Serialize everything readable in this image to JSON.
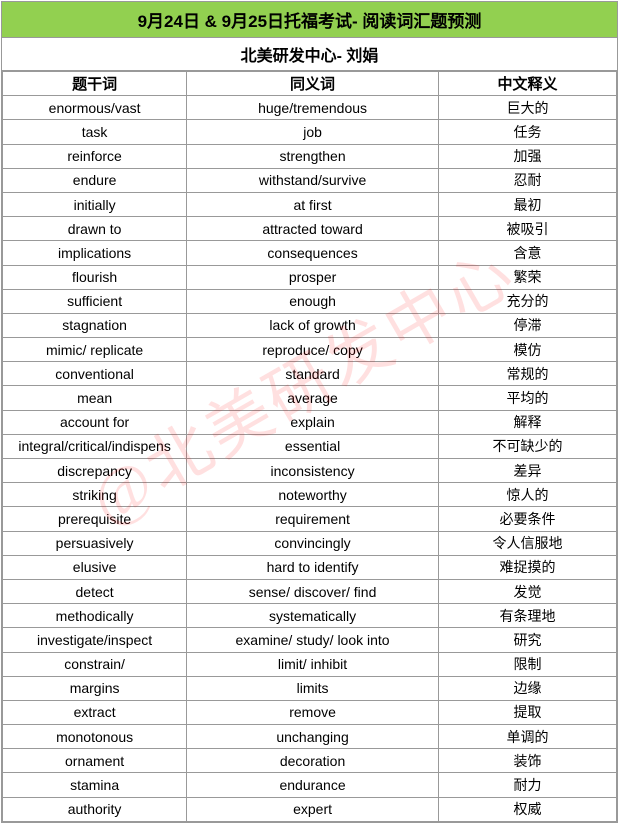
{
  "title_bg": "#92d050",
  "title": "9月24日 & 9月25日托福考试- 阅读词汇题预测",
  "subtitle": "北美研发中心- 刘娟",
  "watermark": "@北美研发中心",
  "columns": [
    "题干词",
    "同义词",
    "中文释义"
  ],
  "rows": [
    [
      "enormous/vast",
      "huge/tremendous",
      "巨大的"
    ],
    [
      "task",
      "job",
      "任务"
    ],
    [
      "reinforce",
      "strengthen",
      "加强"
    ],
    [
      "endure",
      "withstand/survive",
      "忍耐"
    ],
    [
      "initially",
      "at first",
      "最初"
    ],
    [
      "drawn to",
      "attracted toward",
      "被吸引"
    ],
    [
      "implications",
      "consequences",
      "含意"
    ],
    [
      "flourish",
      "prosper",
      "繁荣"
    ],
    [
      "sufficient",
      "enough",
      "充分的"
    ],
    [
      "stagnation",
      "lack of growth",
      "停滞"
    ],
    [
      "mimic/ replicate",
      "reproduce/ copy",
      "模仿"
    ],
    [
      "conventional",
      "standard",
      "常规的"
    ],
    [
      "mean",
      "average",
      "平均的"
    ],
    [
      "account for",
      "explain",
      "解释"
    ],
    [
      "integral/critical/indispens",
      "essential",
      "不可缺少的"
    ],
    [
      "discrepancy",
      "inconsistency",
      "差异"
    ],
    [
      "striking",
      "noteworthy",
      "惊人的"
    ],
    [
      "prerequisite",
      "requirement",
      "必要条件"
    ],
    [
      "persuasively",
      "convincingly",
      "令人信服地"
    ],
    [
      "elusive",
      "hard to identify",
      "难捉摸的"
    ],
    [
      "detect",
      "sense/ discover/ find",
      "发觉"
    ],
    [
      "methodically",
      "systematically",
      "有条理地"
    ],
    [
      "investigate/inspect",
      "examine/ study/ look into",
      "研究"
    ],
    [
      "constrain/",
      "limit/ inhibit",
      "限制"
    ],
    [
      "margins",
      "limits",
      "边缘"
    ],
    [
      "extract",
      "remove",
      "提取"
    ],
    [
      "monotonous",
      "unchanging",
      "单调的"
    ],
    [
      "ornament",
      "decoration",
      "装饰"
    ],
    [
      "stamina",
      "endurance",
      "耐力"
    ],
    [
      "authority",
      "expert",
      "权威"
    ]
  ]
}
